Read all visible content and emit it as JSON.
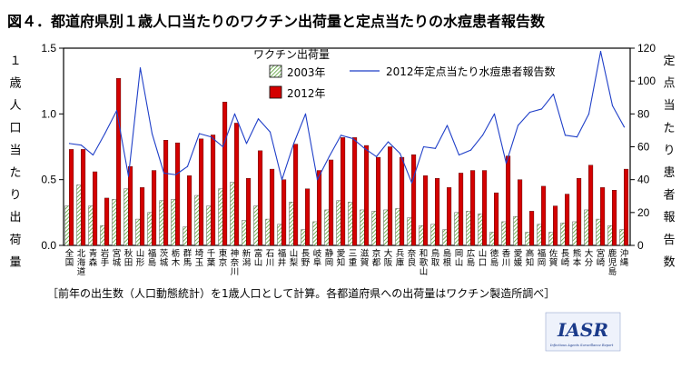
{
  "title": "図４．都道府県別１歳人口当たりのワクチン出荷量と定点当たりの水痘患者報告数",
  "note": "［前年の出生数（人口動態統計）を1歳人口として計算。各都道府県への出荷量はワクチン製造所調べ］",
  "logo": {
    "text": "IASR",
    "subtext": "Infectious Agents Surveillance Report"
  },
  "legend": {
    "title": "ワクチン出荷量",
    "items": [
      "2003年",
      "2012年"
    ],
    "line_label": "2012年定点当たり水痘患者報告数"
  },
  "colors": {
    "bar2003": "#9ccc7a",
    "bar2012": "#d40000",
    "line": "#1f3fc8"
  },
  "chart_data": {
    "type": "bar",
    "title": "図４．都道府県別１歳人口当たりのワクチン出荷量と定点当たりの水痘患者報告数",
    "ylabel": "１歳人口当たり出荷量",
    "y2label": "定点当たり患者報告数",
    "ylim": [
      0,
      1.5
    ],
    "y2lim": [
      0,
      120
    ],
    "yticks": [
      "0.0",
      "0.5",
      "1.0",
      "1.5"
    ],
    "y2ticks": [
      "0",
      "20",
      "40",
      "60",
      "80",
      "100",
      "120"
    ],
    "categories": [
      "全国",
      "北海道",
      "青森",
      "岩手",
      "宮城",
      "秋田",
      "山形",
      "福島",
      "茨城",
      "栃木",
      "群馬",
      "埼玉",
      "千葉",
      "東京",
      "神奈川",
      "新潟",
      "富山",
      "石川",
      "福井",
      "山梨",
      "長野",
      "岐阜",
      "静岡",
      "愛知",
      "三重",
      "滋賀",
      "京都",
      "大阪",
      "兵庫",
      "奈良",
      "和歌山",
      "鳥取",
      "島根",
      "岡山",
      "広島",
      "山口",
      "徳島",
      "香川",
      "愛媛",
      "高知",
      "福岡",
      "佐賀",
      "長崎",
      "熊本",
      "大分",
      "宮崎",
      "鹿児島",
      "沖縄"
    ],
    "series": [
      {
        "name": "2003年",
        "kind": "bar",
        "values": [
          0.3,
          0.46,
          0.3,
          0.15,
          0.35,
          0.43,
          0.2,
          0.25,
          0.34,
          0.35,
          0.14,
          0.38,
          0.3,
          0.43,
          0.48,
          0.19,
          0.3,
          0.2,
          0.16,
          0.33,
          0.12,
          0.18,
          0.27,
          0.34,
          0.33,
          0.27,
          0.26,
          0.27,
          0.28,
          0.21,
          0.15,
          0.16,
          0.12,
          0.25,
          0.26,
          0.24,
          0.1,
          0.18,
          0.22,
          0.1,
          0.16,
          0.1,
          0.17,
          0.18,
          0.27,
          0.2,
          0.15,
          0.12
        ]
      },
      {
        "name": "2012年",
        "kind": "bar",
        "values": [
          0.73,
          0.73,
          0.56,
          0.36,
          1.27,
          0.6,
          0.44,
          0.57,
          0.8,
          0.78,
          0.53,
          0.81,
          0.84,
          1.09,
          0.93,
          0.51,
          0.72,
          0.58,
          0.5,
          0.77,
          0.43,
          0.57,
          0.65,
          0.82,
          0.82,
          0.76,
          0.67,
          0.75,
          0.67,
          0.69,
          0.53,
          0.51,
          0.44,
          0.55,
          0.57,
          0.57,
          0.4,
          0.68,
          0.5,
          0.26,
          0.45,
          0.3,
          0.39,
          0.51,
          0.61,
          0.44,
          0.42,
          0.58
        ]
      },
      {
        "name": "2012年定点当たり水痘患者報告数",
        "kind": "line",
        "axis": "right",
        "values": [
          62,
          61,
          55,
          68,
          82,
          42,
          108,
          68,
          44,
          43,
          48,
          68,
          66,
          60,
          80,
          62,
          77,
          69,
          40,
          62,
          80,
          40,
          54,
          67,
          65,
          59,
          54,
          63,
          56,
          38,
          60,
          59,
          73,
          55,
          58,
          67,
          80,
          50,
          73,
          81,
          83,
          92,
          67,
          66,
          80,
          118,
          85,
          72
        ]
      }
    ]
  }
}
